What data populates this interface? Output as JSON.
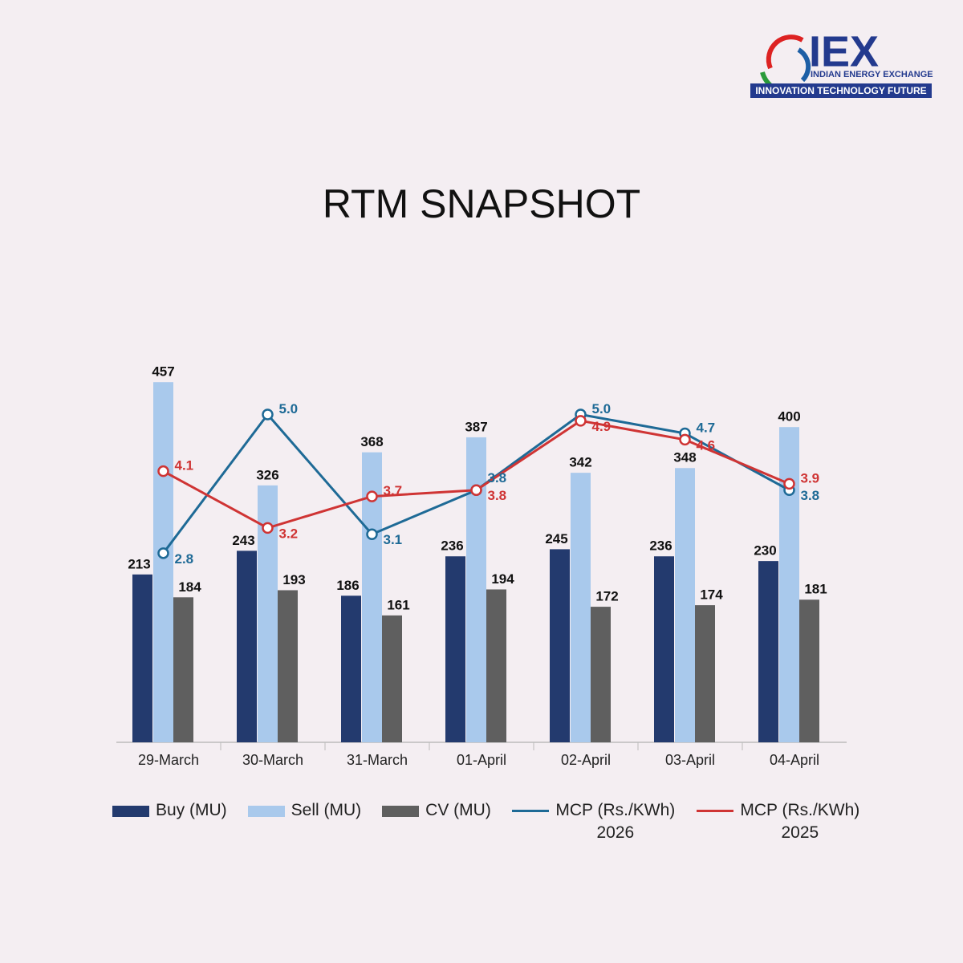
{
  "logo": {
    "name": "IEX",
    "subtitle": "INDIAN ENERGY EXCHANGE",
    "tagline": "INNOVATION   TECHNOLOGY   FUTURE"
  },
  "chart_data": {
    "type": "bar",
    "title": "RTM  SNAPSHOT",
    "categories": [
      "29-March",
      "30-March",
      "31-March",
      "01-April",
      "02-April",
      "03-April",
      "04-April"
    ],
    "ylim": [
      0,
      640
    ],
    "y2lim": [
      -0.2,
      7.8
    ],
    "series": [
      {
        "name": "Buy (MU)",
        "type": "bar",
        "color": "#233a6e",
        "values": [
          213,
          243,
          186,
          236,
          245,
          236,
          230
        ]
      },
      {
        "name": "Sell (MU)",
        "type": "bar",
        "color": "#a9c9ec",
        "values": [
          457,
          326,
          368,
          387,
          342,
          348,
          400
        ]
      },
      {
        "name": "CV (MU)",
        "type": "bar",
        "color": "#5f5f5f",
        "values": [
          184,
          193,
          161,
          194,
          172,
          174,
          181
        ]
      },
      {
        "name": "MCP (Rs./KWh) 2026",
        "type": "line",
        "axis": "y2",
        "color": "#1e6a96",
        "values": [
          2.8,
          5.0,
          3.1,
          3.8,
          5.0,
          4.7,
          3.8
        ],
        "value_labels": [
          "2.8",
          "5.0",
          "3.1",
          "3.8",
          "5.0",
          "4.7",
          "3.8"
        ]
      },
      {
        "name": "MCP (Rs./KWh) 2025",
        "type": "line",
        "axis": "y2",
        "color": "#cf3434",
        "values": [
          4.1,
          3.2,
          3.7,
          3.8,
          4.9,
          4.6,
          3.9
        ],
        "value_labels": [
          "4.1",
          "3.2",
          "3.7",
          "3.8",
          "4.9",
          "4.6",
          "3.9"
        ]
      }
    ]
  }
}
